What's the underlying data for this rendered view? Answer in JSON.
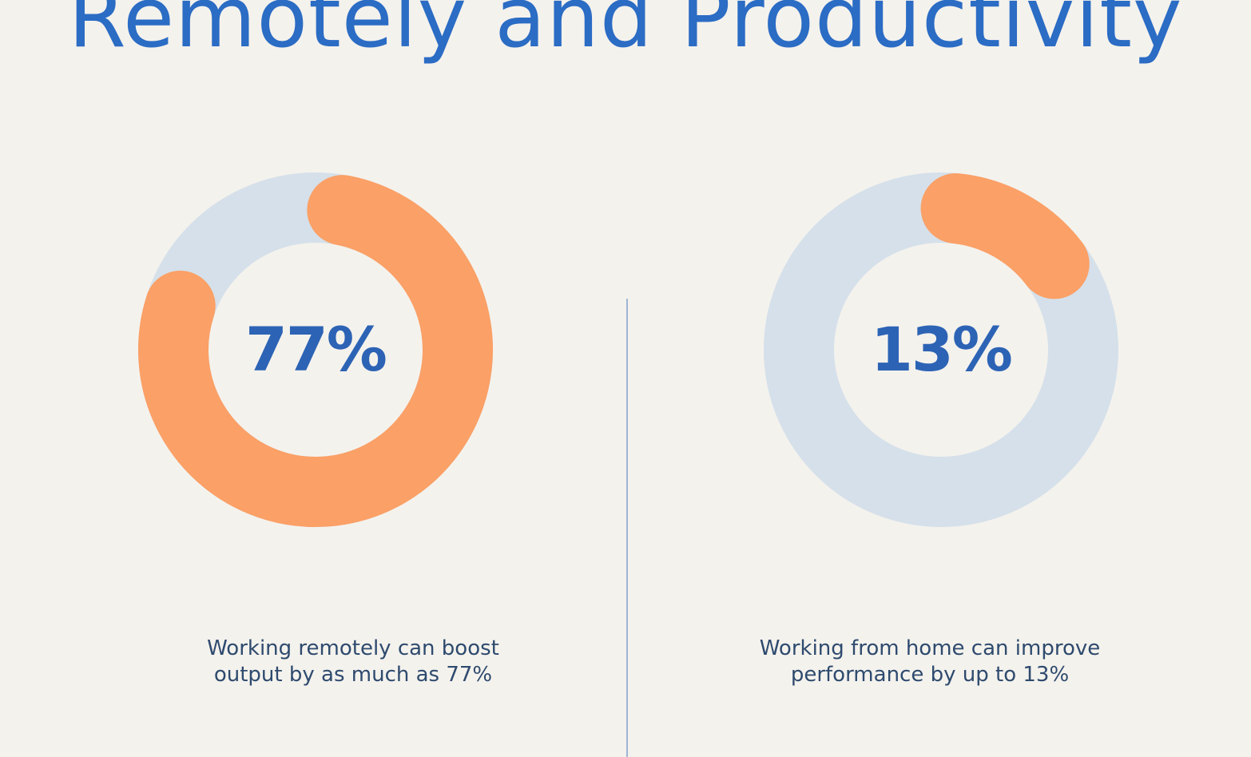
{
  "title": "Remotely and Productivity",
  "colors": {
    "background": "#F4F2ED",
    "title": "#2B6CC4",
    "value_text": "#2C63B5",
    "caption_text": "#2E4A6E",
    "track": "#D5E0EA",
    "accent": "#FBA066",
    "divider": "#9DB5D6"
  },
  "chart_data": [
    {
      "type": "pie",
      "variant": "donut",
      "value": 77,
      "max": 100,
      "center_label": "77%",
      "caption": [
        "Working remotely can boost",
        "output by as much as 77%"
      ]
    },
    {
      "type": "pie",
      "variant": "donut",
      "value": 13,
      "max": 100,
      "center_label": "13%",
      "caption": [
        "Working from home can improve",
        "performance by up to 13%"
      ]
    }
  ]
}
